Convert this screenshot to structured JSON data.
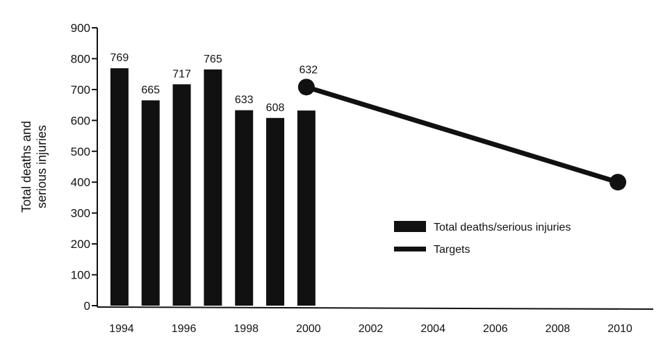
{
  "chart_data": {
    "type": "bar",
    "ylabel": [
      "Total deaths and",
      "serious injuries"
    ],
    "ylim": [
      0,
      900
    ],
    "yticks": [
      0,
      100,
      200,
      300,
      400,
      500,
      600,
      700,
      800,
      900
    ],
    "x_axis_labels": [
      "1994",
      "1996",
      "1998",
      "2000",
      "2002",
      "2004",
      "2006",
      "2008",
      "2010"
    ],
    "x_range": [
      1993.4,
      2010.8
    ],
    "bars": [
      {
        "year": 1994,
        "value": 769,
        "label": "769"
      },
      {
        "year": 1995,
        "value": 665,
        "label": "665"
      },
      {
        "year": 1996,
        "value": 717,
        "label": "717"
      },
      {
        "year": 1997,
        "value": 765,
        "label": "765"
      },
      {
        "year": 1998,
        "value": 633,
        "label": "633"
      },
      {
        "year": 1999,
        "value": 608,
        "label": "608"
      },
      {
        "year": 2000,
        "value": 632,
        "label": ""
      }
    ],
    "target_line": {
      "points": [
        {
          "year": 2000,
          "value": 708
        },
        {
          "year": 2010,
          "value": 400
        }
      ],
      "start_label": "632"
    },
    "series": [
      {
        "name": "Total deaths/serious injuries",
        "kind": "bar"
      },
      {
        "name": "Targets",
        "kind": "line"
      }
    ],
    "legend_position": "right",
    "grid": false,
    "colors": {
      "bar": "#111111",
      "line": "#111111",
      "axis": "#111111"
    }
  }
}
